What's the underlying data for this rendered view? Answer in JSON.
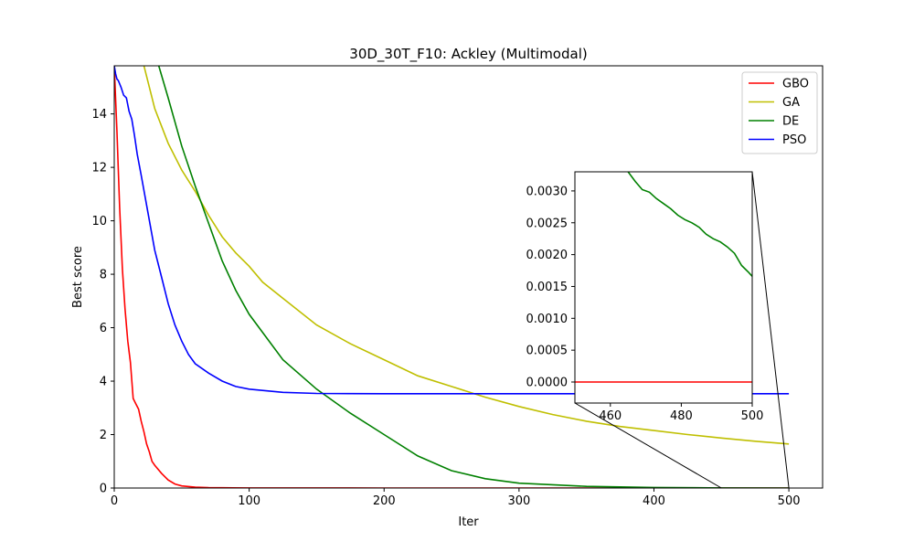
{
  "chart_data": {
    "type": "line",
    "title": "30D_30T_F10: Ackley (Multimodal)",
    "xlabel": "Iter",
    "ylabel": "Best score",
    "xlim": [
      0,
      525
    ],
    "ylim": [
      0,
      15.8
    ],
    "xticks": [
      0,
      100,
      200,
      300,
      400,
      500
    ],
    "yticks": [
      0,
      2,
      4,
      6,
      8,
      10,
      12,
      14
    ],
    "legend": "top-right",
    "grid": false,
    "series": [
      {
        "name": "GBO",
        "color": "#ff0000",
        "x": [
          0,
          2,
          4,
          6,
          8,
          10,
          12,
          14,
          16,
          18,
          20,
          22,
          24,
          26,
          28,
          30,
          35,
          40,
          45,
          50,
          60,
          70,
          80,
          100,
          150,
          200,
          300,
          400,
          500
        ],
        "y": [
          15.8,
          13.3,
          10.5,
          8.2,
          6.7,
          5.5,
          4.7,
          3.35,
          3.15,
          2.95,
          2.5,
          2.1,
          1.65,
          1.35,
          1.0,
          0.85,
          0.55,
          0.3,
          0.15,
          0.08,
          0.03,
          0.015,
          0.01,
          0.005,
          0.002,
          0.001,
          0.0003,
          0.0001,
          0.0
        ]
      },
      {
        "name": "GA",
        "color": "#bfbf00",
        "x": [
          22,
          30,
          40,
          50,
          60,
          70,
          80,
          90,
          100,
          110,
          125,
          150,
          175,
          200,
          225,
          250,
          275,
          300,
          325,
          350,
          375,
          400,
          425,
          450,
          475,
          500
        ],
        "y": [
          15.8,
          14.2,
          12.9,
          11.9,
          11.1,
          10.2,
          9.4,
          8.8,
          8.3,
          7.7,
          7.1,
          6.1,
          5.4,
          4.8,
          4.2,
          3.8,
          3.4,
          3.05,
          2.75,
          2.5,
          2.3,
          2.15,
          2.0,
          1.87,
          1.75,
          1.65
        ]
      },
      {
        "name": "DE",
        "color": "#008000",
        "x": [
          33,
          40,
          50,
          60,
          70,
          80,
          90,
          100,
          125,
          150,
          175,
          200,
          225,
          250,
          275,
          300,
          350,
          400,
          450,
          500
        ],
        "y": [
          15.8,
          14.6,
          12.8,
          11.3,
          9.9,
          8.5,
          7.4,
          6.5,
          4.8,
          3.7,
          2.8,
          2.0,
          1.2,
          0.65,
          0.35,
          0.18,
          0.06,
          0.02,
          0.005,
          0.00166
        ]
      },
      {
        "name": "PSO",
        "color": "#0000ff",
        "x": [
          0,
          1,
          2,
          3,
          5,
          7,
          9,
          11,
          13,
          15,
          17,
          20,
          25,
          30,
          35,
          40,
          45,
          50,
          55,
          60,
          70,
          80,
          90,
          100,
          125,
          150,
          200,
          300,
          400,
          500
        ],
        "y": [
          15.8,
          15.5,
          15.3,
          15.25,
          15.0,
          14.7,
          14.6,
          14.1,
          13.8,
          13.2,
          12.5,
          11.7,
          10.3,
          8.9,
          7.9,
          6.9,
          6.1,
          5.5,
          5.0,
          4.65,
          4.3,
          4.0,
          3.8,
          3.7,
          3.58,
          3.54,
          3.53,
          3.53,
          3.53,
          3.53
        ]
      }
    ],
    "inset": {
      "xlim": [
        450,
        500
      ],
      "ylim": [
        -0.00033,
        0.0033
      ],
      "xticks": [
        460,
        480,
        500
      ],
      "yticks": [
        0.0,
        0.0005,
        0.001,
        0.0015,
        0.002,
        0.0025,
        0.003
      ],
      "series": [
        {
          "name": "GBO",
          "color": "#ff0000",
          "x": [
            450,
            500
          ],
          "y": [
            0.0,
            0.0
          ]
        },
        {
          "name": "DE",
          "color": "#008000",
          "x": [
            465,
            467,
            469,
            471,
            473,
            475,
            477,
            479,
            481,
            483,
            485,
            487,
            489,
            491,
            493,
            495,
            497,
            499,
            500
          ],
          "y": [
            0.0033,
            0.00315,
            0.00302,
            0.00298,
            0.00288,
            0.0028,
            0.00272,
            0.00262,
            0.00255,
            0.0025,
            0.00243,
            0.00232,
            0.00225,
            0.0022,
            0.00212,
            0.00202,
            0.00183,
            0.00172,
            0.00166
          ]
        }
      ]
    }
  }
}
